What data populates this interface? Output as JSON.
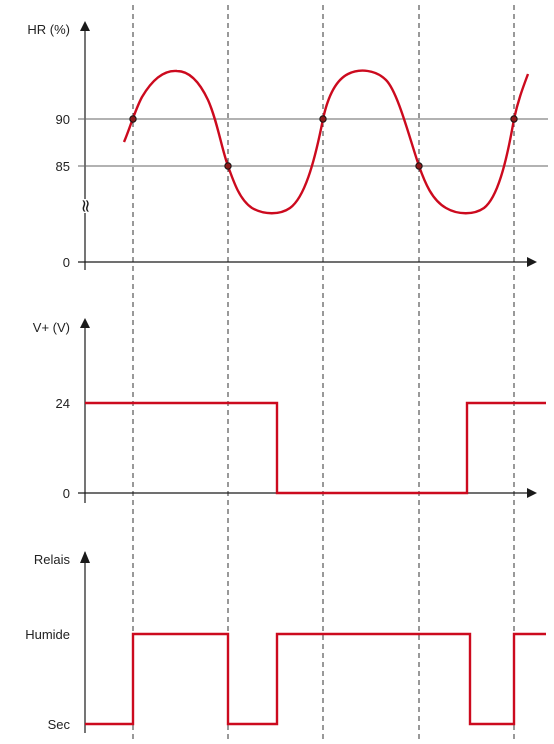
{
  "colors": {
    "signal": "#cc0a1e",
    "axis": "#1a1a1a",
    "guide": "#333333",
    "threshold_line": "#666666",
    "label": "#222222"
  },
  "chart_data": [
    {
      "type": "line",
      "ylabel": "HR (%)",
      "y_ticks": [
        "90",
        "85",
        "0"
      ],
      "axis_break": "≈",
      "thresholds": [
        90,
        85
      ],
      "crossing_points": [
        {
          "threshold": 90,
          "direction": "rising"
        },
        {
          "threshold": 85,
          "direction": "falling"
        },
        {
          "threshold": 90,
          "direction": "rising"
        },
        {
          "threshold": 85,
          "direction": "falling"
        },
        {
          "threshold": 90,
          "direction": "rising"
        }
      ]
    },
    {
      "type": "line",
      "ylabel": "V+ (V)",
      "y_ticks": [
        "24",
        "0"
      ],
      "step_levels": [
        24,
        0,
        24
      ],
      "transitions_at_marker": [
        "between 2 and 3",
        "between 4 and 5"
      ]
    },
    {
      "type": "line",
      "ylabel": "Relais",
      "y_ticks": [
        "Humide",
        "Sec"
      ],
      "step_levels": [
        "Sec",
        "Humide",
        "Sec",
        "Humide",
        "Sec",
        "Humide"
      ]
    }
  ]
}
